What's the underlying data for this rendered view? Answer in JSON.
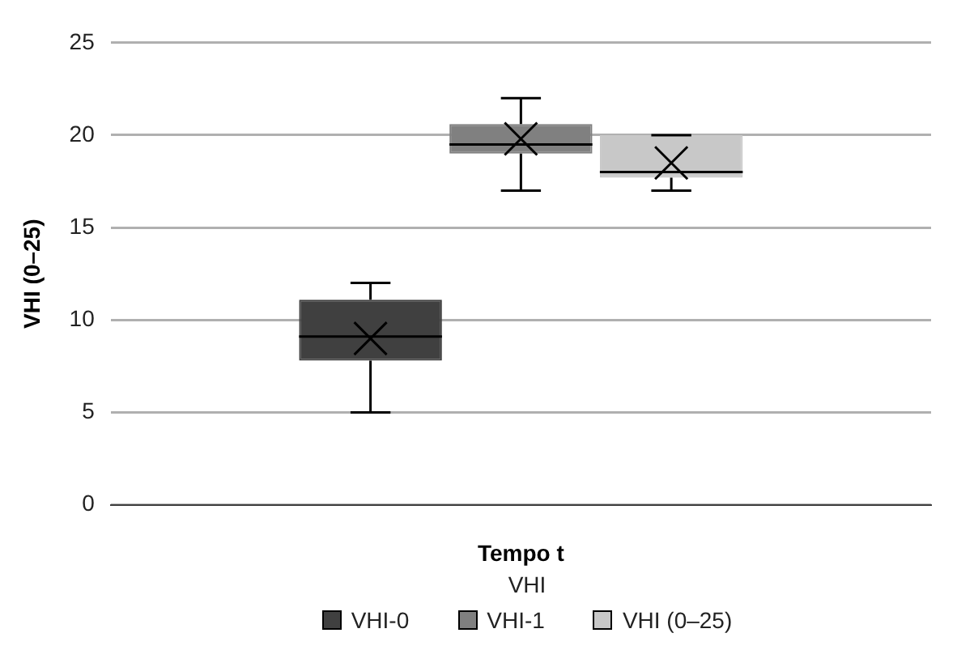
{
  "chart_data": {
    "type": "box",
    "xlabel": "Tempo t",
    "ylabel": "VHI (0–25)",
    "legend_title": "VHI",
    "legend": "bottom",
    "grid": "y",
    "categories": [
      null
    ],
    "ylim": [
      0,
      25
    ],
    "yticks": [
      0,
      5,
      10,
      15,
      20,
      25
    ],
    "series": [
      {
        "name": "VHI-0",
        "color": "#404040",
        "boxes": [
          {
            "low": 5,
            "q1": 7.8,
            "median": 9.1,
            "q3": 11.1,
            "high": 12,
            "mean": 9
          }
        ]
      },
      {
        "name": "VHI-1",
        "color": "#808080",
        "boxes": [
          {
            "low": 17,
            "q1": 19,
            "median": 19.5,
            "q3": 20.6,
            "high": 22,
            "mean": 19.8
          }
        ]
      },
      {
        "name": "VHI (0–25)",
        "color": "#c8c8c8",
        "boxes": [
          {
            "low": 17,
            "q1": 17.7,
            "median": 18,
            "q3": 20,
            "high": 20,
            "mean": 18.5
          }
        ]
      }
    ]
  }
}
